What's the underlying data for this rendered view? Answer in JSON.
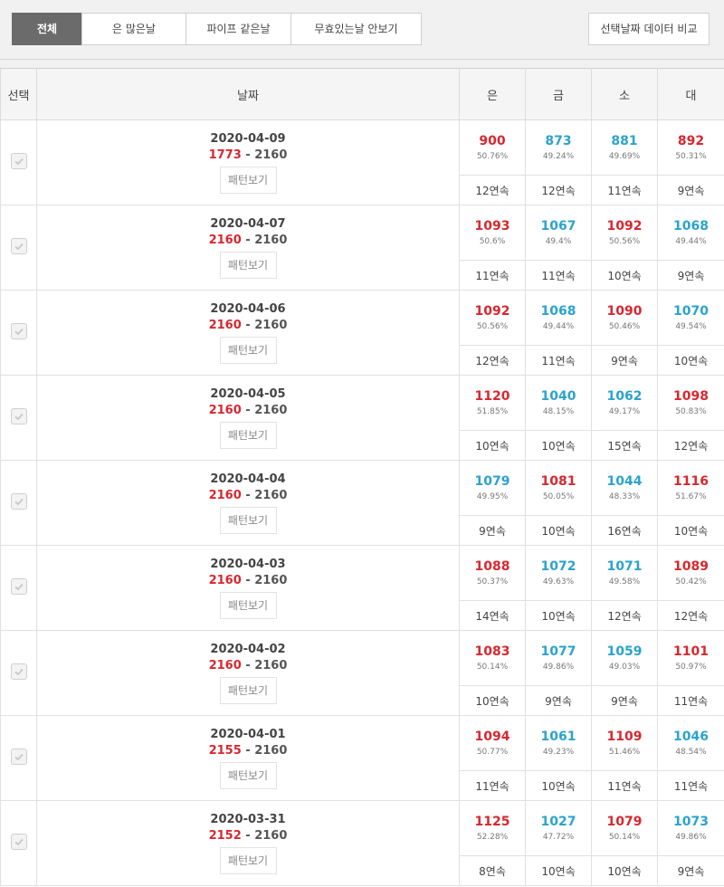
{
  "tabs": [
    {
      "label": "전체",
      "active": true
    },
    {
      "label": "은 많은날",
      "active": false
    },
    {
      "label": "파이프 같은날",
      "active": false
    },
    {
      "label": "무효있는날 안보기",
      "active": false
    }
  ],
  "compare_button": "선택날짜 데이터 비교",
  "columns": {
    "select": "선택",
    "date": "날짜",
    "eun": "은",
    "geum": "금",
    "so": "소",
    "dae": "대"
  },
  "pattern_label": "패턴보기",
  "colors": {
    "red": "#d8272f",
    "blue": "#2aa3cc"
  },
  "rows": [
    {
      "date": "2020-04-09",
      "r1": "1773",
      "r2": "2160",
      "eun": {
        "n": "900",
        "p": "50.76%",
        "s": "12연속",
        "c": "red"
      },
      "geum": {
        "n": "873",
        "p": "49.24%",
        "s": "12연속",
        "c": "blue"
      },
      "so": {
        "n": "881",
        "p": "49.69%",
        "s": "11연속",
        "c": "blue"
      },
      "dae": {
        "n": "892",
        "p": "50.31%",
        "s": "9연속",
        "c": "red"
      }
    },
    {
      "date": "2020-04-07",
      "r1": "2160",
      "r2": "2160",
      "eun": {
        "n": "1093",
        "p": "50.6%",
        "s": "11연속",
        "c": "red"
      },
      "geum": {
        "n": "1067",
        "p": "49.4%",
        "s": "11연속",
        "c": "blue"
      },
      "so": {
        "n": "1092",
        "p": "50.56%",
        "s": "10연속",
        "c": "red"
      },
      "dae": {
        "n": "1068",
        "p": "49.44%",
        "s": "9연속",
        "c": "blue"
      }
    },
    {
      "date": "2020-04-06",
      "r1": "2160",
      "r2": "2160",
      "eun": {
        "n": "1092",
        "p": "50.56%",
        "s": "12연속",
        "c": "red"
      },
      "geum": {
        "n": "1068",
        "p": "49.44%",
        "s": "11연속",
        "c": "blue"
      },
      "so": {
        "n": "1090",
        "p": "50.46%",
        "s": "9연속",
        "c": "red"
      },
      "dae": {
        "n": "1070",
        "p": "49.54%",
        "s": "10연속",
        "c": "blue"
      }
    },
    {
      "date": "2020-04-05",
      "r1": "2160",
      "r2": "2160",
      "eun": {
        "n": "1120",
        "p": "51.85%",
        "s": "10연속",
        "c": "red"
      },
      "geum": {
        "n": "1040",
        "p": "48.15%",
        "s": "10연속",
        "c": "blue"
      },
      "so": {
        "n": "1062",
        "p": "49.17%",
        "s": "15연속",
        "c": "blue"
      },
      "dae": {
        "n": "1098",
        "p": "50.83%",
        "s": "12연속",
        "c": "red"
      }
    },
    {
      "date": "2020-04-04",
      "r1": "2160",
      "r2": "2160",
      "eun": {
        "n": "1079",
        "p": "49.95%",
        "s": "9연속",
        "c": "blue"
      },
      "geum": {
        "n": "1081",
        "p": "50.05%",
        "s": "10연속",
        "c": "red"
      },
      "so": {
        "n": "1044",
        "p": "48.33%",
        "s": "16연속",
        "c": "blue"
      },
      "dae": {
        "n": "1116",
        "p": "51.67%",
        "s": "10연속",
        "c": "red"
      }
    },
    {
      "date": "2020-04-03",
      "r1": "2160",
      "r2": "2160",
      "eun": {
        "n": "1088",
        "p": "50.37%",
        "s": "14연속",
        "c": "red"
      },
      "geum": {
        "n": "1072",
        "p": "49.63%",
        "s": "10연속",
        "c": "blue"
      },
      "so": {
        "n": "1071",
        "p": "49.58%",
        "s": "12연속",
        "c": "blue"
      },
      "dae": {
        "n": "1089",
        "p": "50.42%",
        "s": "12연속",
        "c": "red"
      }
    },
    {
      "date": "2020-04-02",
      "r1": "2160",
      "r2": "2160",
      "eun": {
        "n": "1083",
        "p": "50.14%",
        "s": "10연속",
        "c": "red"
      },
      "geum": {
        "n": "1077",
        "p": "49.86%",
        "s": "9연속",
        "c": "blue"
      },
      "so": {
        "n": "1059",
        "p": "49.03%",
        "s": "9연속",
        "c": "blue"
      },
      "dae": {
        "n": "1101",
        "p": "50.97%",
        "s": "11연속",
        "c": "red"
      }
    },
    {
      "date": "2020-04-01",
      "r1": "2155",
      "r2": "2160",
      "eun": {
        "n": "1094",
        "p": "50.77%",
        "s": "11연속",
        "c": "red"
      },
      "geum": {
        "n": "1061",
        "p": "49.23%",
        "s": "10연속",
        "c": "blue"
      },
      "so": {
        "n": "1109",
        "p": "51.46%",
        "s": "11연속",
        "c": "red"
      },
      "dae": {
        "n": "1046",
        "p": "48.54%",
        "s": "11연속",
        "c": "blue"
      }
    },
    {
      "date": "2020-03-31",
      "r1": "2152",
      "r2": "2160",
      "eun": {
        "n": "1125",
        "p": "52.28%",
        "s": "8연속",
        "c": "red"
      },
      "geum": {
        "n": "1027",
        "p": "47.72%",
        "s": "10연속",
        "c": "blue"
      },
      "so": {
        "n": "1079",
        "p": "50.14%",
        "s": "10연속",
        "c": "red"
      },
      "dae": {
        "n": "1073",
        "p": "49.86%",
        "s": "9연속",
        "c": "blue"
      }
    }
  ]
}
